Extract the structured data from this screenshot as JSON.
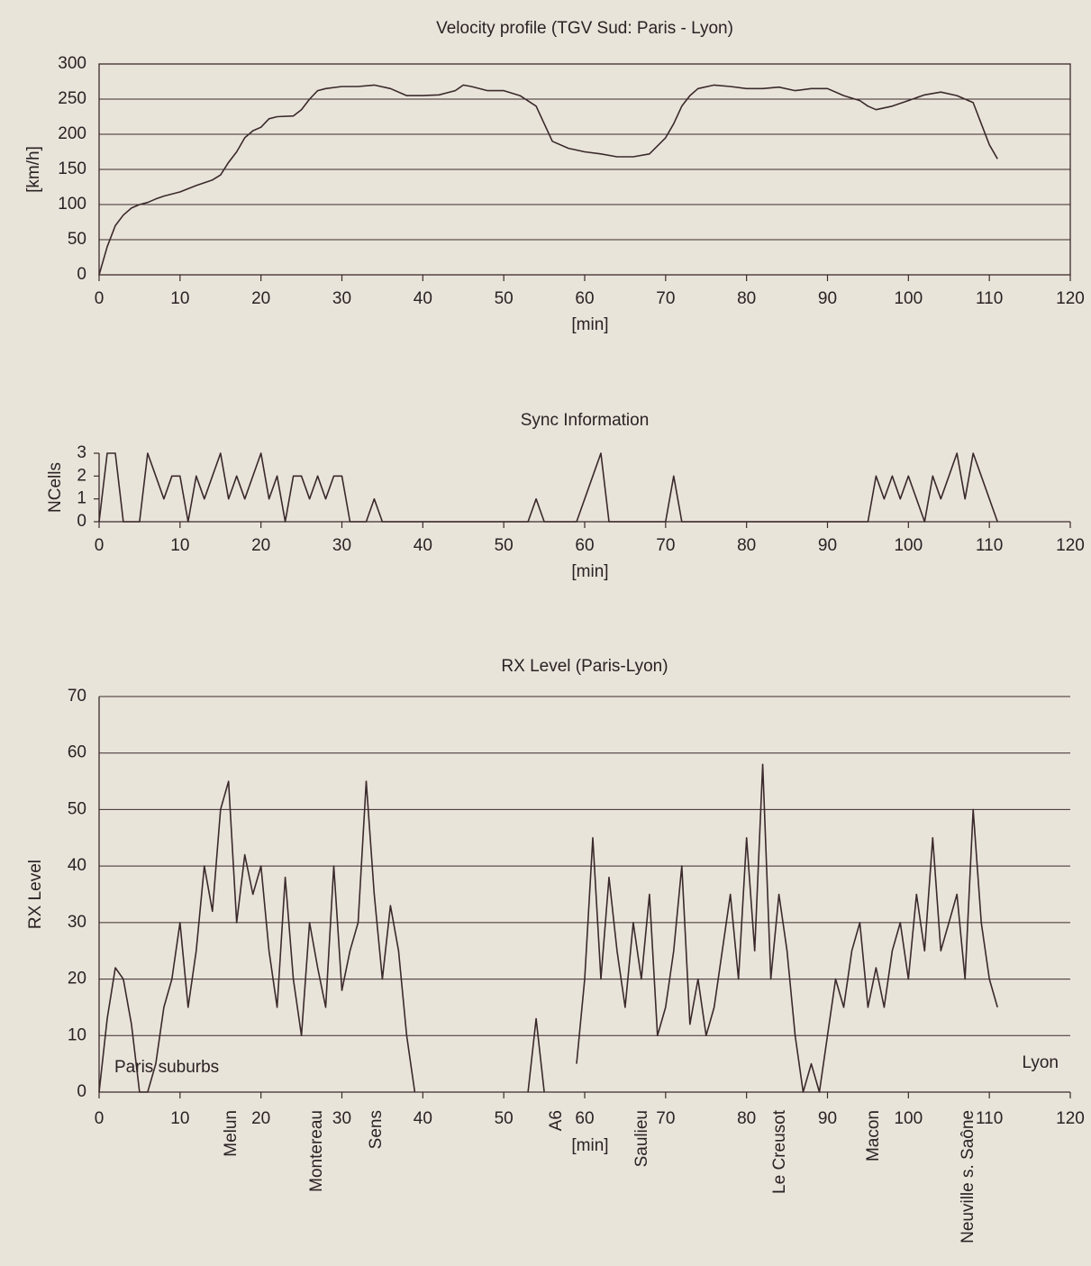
{
  "chart_data": [
    {
      "type": "line",
      "title": "Velocity profile (TGV Sud: Paris - Lyon)",
      "y_label": "[km/h]",
      "x_label": "[min]",
      "x": [
        0,
        1,
        2,
        3,
        4,
        5,
        6,
        7,
        8,
        10,
        12,
        14,
        15,
        16,
        17,
        18,
        19,
        20,
        21,
        22,
        24,
        25,
        26,
        27,
        28,
        30,
        32,
        34,
        36,
        38,
        40,
        42,
        44,
        45,
        46,
        48,
        50,
        52,
        54,
        55,
        56,
        58,
        60,
        62,
        64,
        66,
        68,
        70,
        71,
        72,
        73,
        74,
        76,
        78,
        80,
        82,
        84,
        86,
        88,
        90,
        92,
        94,
        95,
        96,
        98,
        100,
        102,
        104,
        106,
        108,
        109,
        110,
        111
      ],
      "values": [
        0,
        40,
        70,
        85,
        95,
        100,
        103,
        108,
        112,
        118,
        127,
        135,
        142,
        160,
        175,
        195,
        205,
        210,
        222,
        225,
        226,
        235,
        250,
        262,
        265,
        268,
        268,
        270,
        265,
        255,
        255,
        256,
        262,
        270,
        268,
        262,
        262,
        255,
        240,
        215,
        190,
        180,
        175,
        172,
        168,
        168,
        172,
        195,
        215,
        240,
        255,
        265,
        270,
        268,
        265,
        265,
        267,
        262,
        265,
        265,
        255,
        248,
        240,
        235,
        240,
        248,
        256,
        260,
        255,
        245,
        215,
        185,
        165
      ],
      "color": "#3b2a2c",
      "xlim": [
        0,
        120
      ],
      "ylim": [
        0,
        300
      ],
      "xticks": [
        0,
        10,
        20,
        30,
        40,
        50,
        60,
        70,
        80,
        90,
        100,
        110,
        120
      ],
      "yticks": [
        0,
        50,
        100,
        150,
        200,
        250,
        300
      ],
      "grid": true
    },
    {
      "type": "line",
      "title": "Sync Information",
      "y_label": "NCells",
      "x_label": "[min]",
      "x": [
        0,
        1,
        2,
        3,
        4,
        5,
        6,
        7,
        8,
        9,
        10,
        11,
        12,
        13,
        14,
        15,
        16,
        17,
        18,
        19,
        20,
        21,
        22,
        23,
        24,
        25,
        26,
        27,
        28,
        29,
        30,
        31,
        32,
        33,
        34,
        35,
        36,
        53,
        54,
        55,
        59,
        60,
        61,
        62,
        63,
        70,
        71,
        72,
        95,
        96,
        97,
        98,
        99,
        100,
        101,
        102,
        103,
        104,
        105,
        106,
        107,
        108,
        109,
        110,
        111
      ],
      "values": [
        0,
        3,
        3,
        0,
        0,
        0,
        3,
        2,
        1,
        2,
        2,
        0,
        2,
        1,
        2,
        3,
        1,
        2,
        1,
        2,
        3,
        1,
        2,
        0,
        2,
        2,
        1,
        2,
        1,
        2,
        2,
        0,
        0,
        0,
        1,
        0,
        0,
        0,
        1,
        0,
        0,
        1,
        2,
        3,
        0,
        0,
        2,
        0,
        0,
        2,
        1,
        2,
        1,
        2,
        1,
        0,
        2,
        1,
        2,
        3,
        1,
        3,
        2,
        1,
        0
      ],
      "color": "#3b2a2c",
      "xlim": [
        0,
        120
      ],
      "ylim": [
        0,
        3
      ],
      "xticks": [
        0,
        10,
        20,
        30,
        40,
        50,
        60,
        70,
        80,
        90,
        100,
        110,
        120
      ],
      "yticks": [
        0,
        1,
        2,
        3
      ],
      "grid": false
    },
    {
      "type": "line",
      "title": "RX Level (Paris-Lyon)",
      "y_label": "RX Level",
      "x_label": "[min]",
      "x": [
        0,
        1,
        2,
        3,
        4,
        5,
        6,
        7,
        8,
        9,
        10,
        11,
        12,
        13,
        14,
        15,
        16,
        17,
        18,
        19,
        20,
        21,
        22,
        23,
        24,
        25,
        26,
        27,
        28,
        29,
        30,
        31,
        32,
        33,
        34,
        35,
        36,
        37,
        38,
        39,
        40,
        52,
        53,
        54,
        55,
        56,
        59,
        60,
        61,
        62,
        63,
        64,
        65,
        66,
        67,
        68,
        69,
        70,
        71,
        72,
        73,
        74,
        75,
        76,
        77,
        78,
        79,
        80,
        81,
        82,
        83,
        84,
        85,
        86,
        87,
        88,
        89,
        90,
        91,
        92,
        93,
        94,
        95,
        96,
        97,
        98,
        99,
        100,
        101,
        102,
        103,
        104,
        105,
        106,
        107,
        108,
        109,
        110,
        111
      ],
      "values": [
        0,
        13,
        22,
        20,
        12,
        0,
        0,
        5,
        15,
        20,
        30,
        15,
        25,
        40,
        32,
        50,
        55,
        30,
        42,
        35,
        40,
        25,
        15,
        38,
        20,
        10,
        30,
        22,
        15,
        40,
        18,
        25,
        30,
        55,
        35,
        20,
        33,
        25,
        10,
        0,
        null,
        null,
        0,
        13,
        0,
        null,
        5,
        20,
        45,
        20,
        38,
        25,
        15,
        30,
        20,
        35,
        10,
        15,
        25,
        40,
        12,
        20,
        10,
        15,
        25,
        35,
        20,
        45,
        25,
        58,
        20,
        35,
        25,
        10,
        0,
        5,
        0,
        10,
        20,
        15,
        25,
        30,
        15,
        22,
        15,
        25,
        30,
        20,
        35,
        25,
        45,
        25,
        30,
        35,
        20,
        50,
        30,
        20,
        15
      ],
      "color": "#3b2a2c",
      "xlim": [
        0,
        120
      ],
      "ylim": [
        0,
        70
      ],
      "xticks": [
        0,
        10,
        20,
        30,
        40,
        50,
        60,
        70,
        80,
        90,
        100,
        110,
        120
      ],
      "yticks": [
        0,
        10,
        20,
        30,
        40,
        50,
        60,
        70
      ],
      "grid": true,
      "annotations": [
        "Paris suburbs",
        "Lyon"
      ],
      "stations": [
        "Melun",
        "Montereau",
        "Sens",
        "A6",
        "Saulieu",
        "Le Creusot",
        "Macon",
        "Neuville s. Saône"
      ]
    }
  ]
}
